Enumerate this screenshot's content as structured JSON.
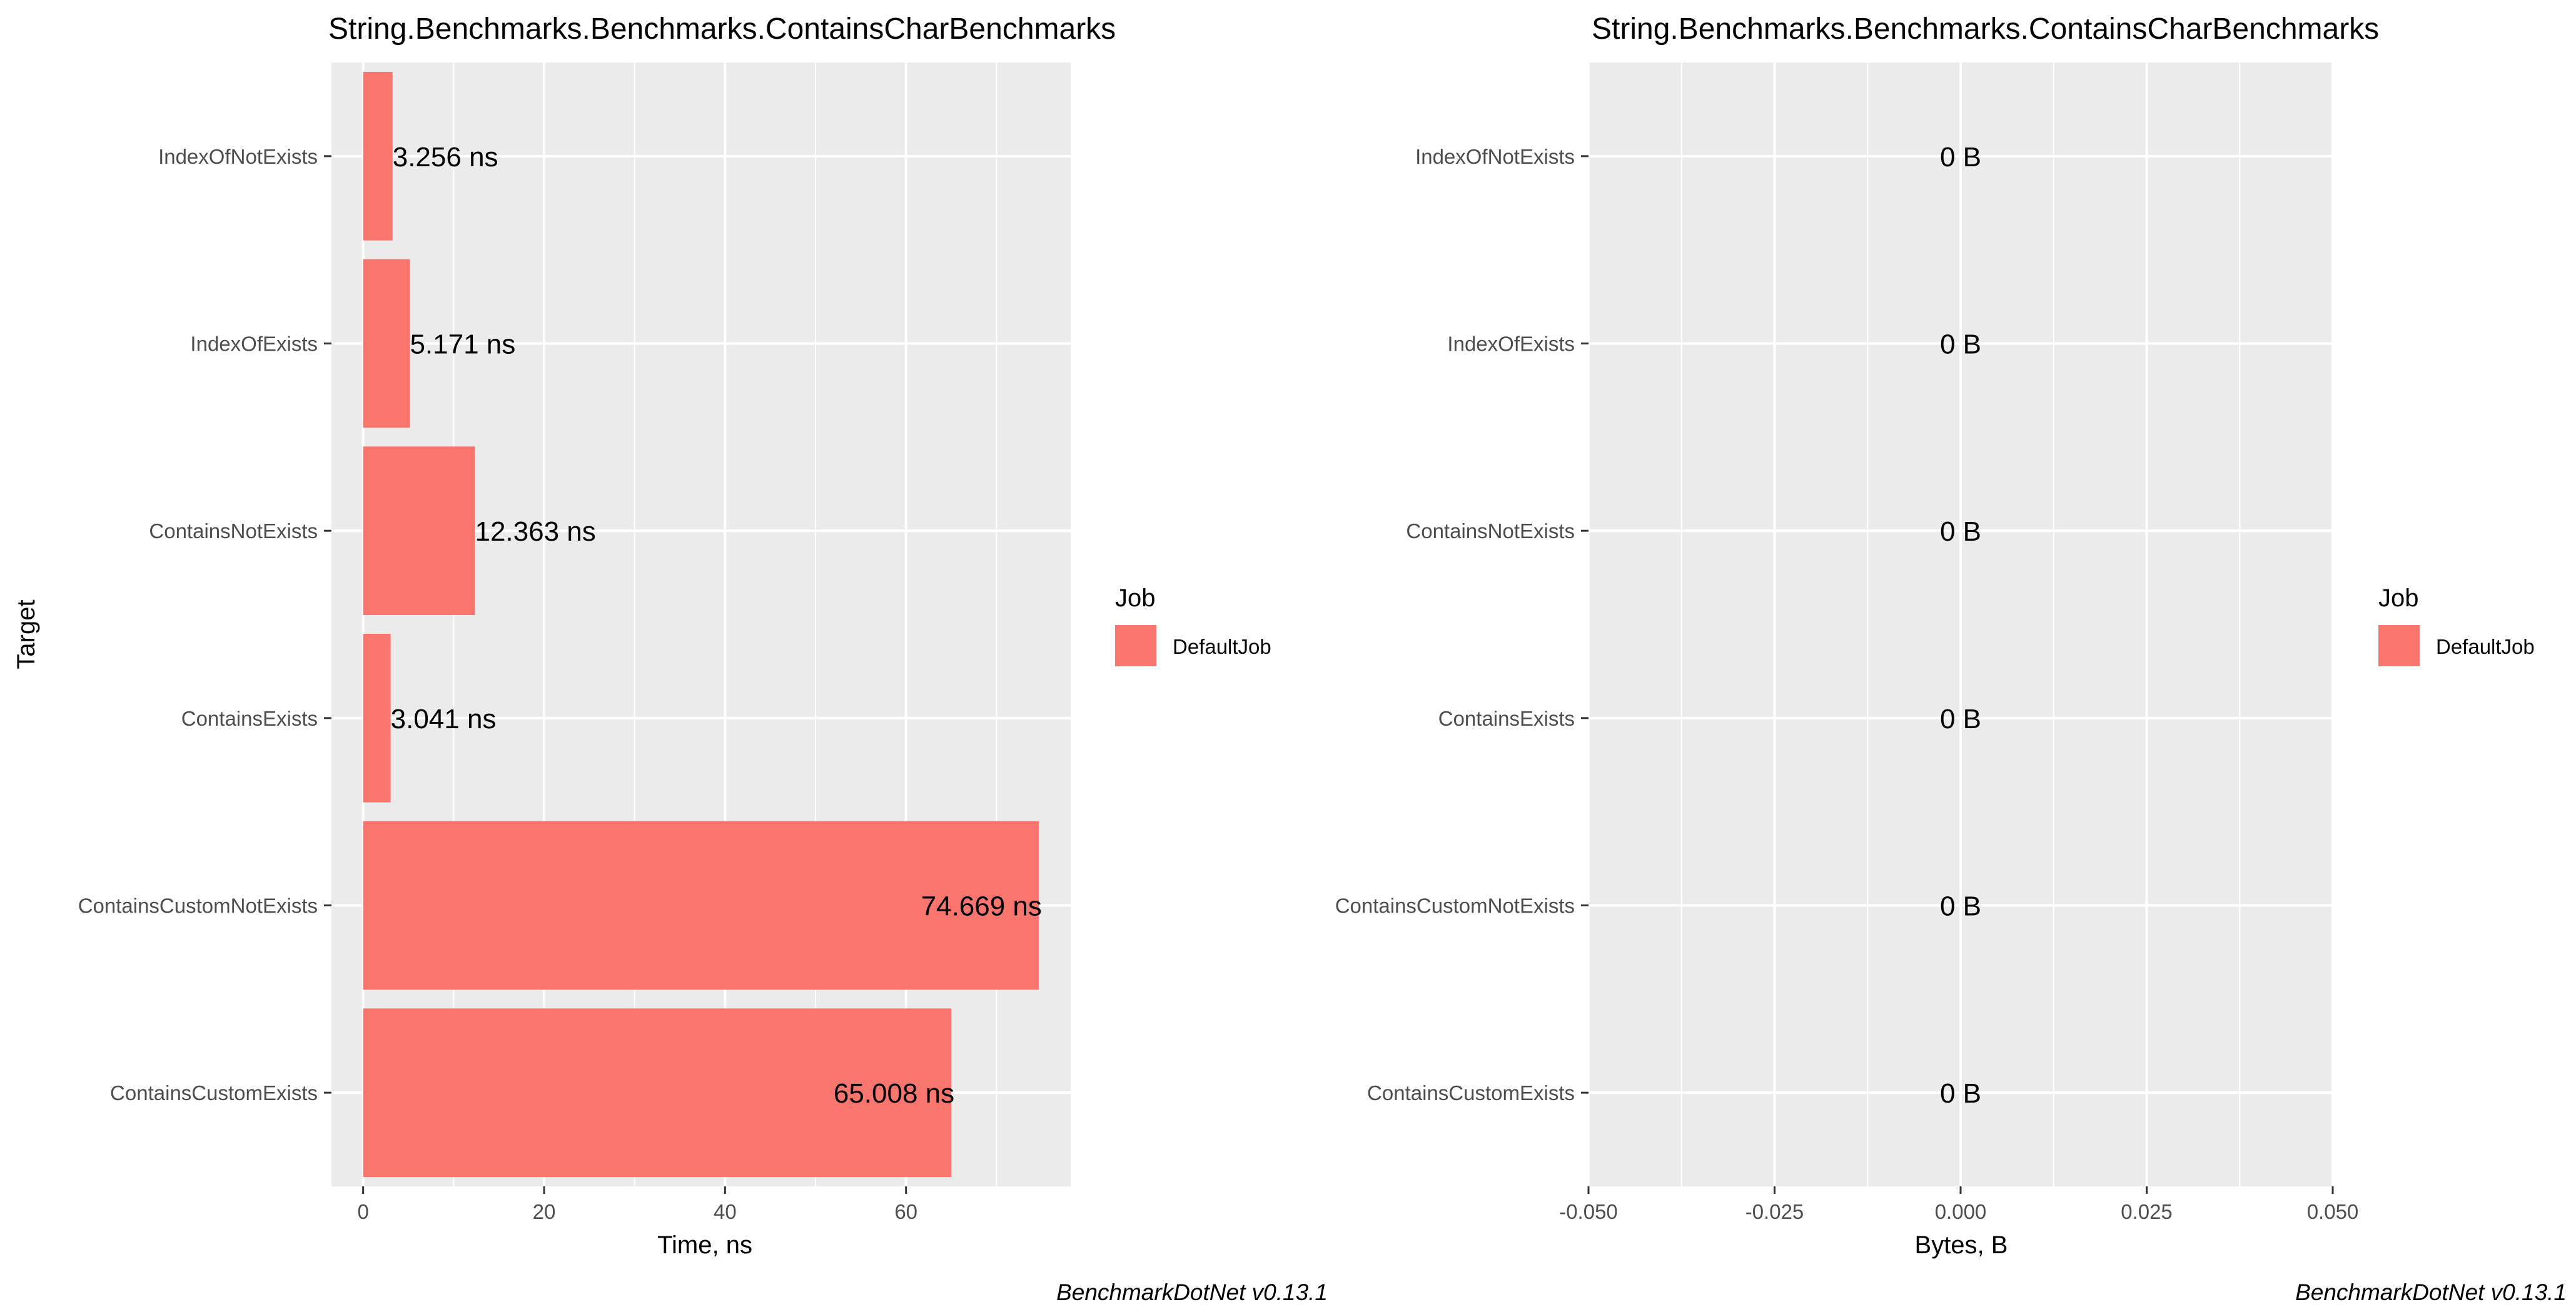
{
  "chart_data": [
    {
      "type": "bar",
      "orientation": "horizontal",
      "title": "String.Benchmarks.Benchmarks.ContainsCharBenchmarks",
      "ylabel": "Target",
      "xlabel": "Time, ns",
      "categories": [
        "IndexOfNotExists",
        "IndexOfExists",
        "ContainsNotExists",
        "ContainsExists",
        "ContainsCustomNotExists",
        "ContainsCustomExists"
      ],
      "series": [
        {
          "name": "DefaultJob",
          "values": [
            3.256,
            5.171,
            12.363,
            3.041,
            74.669,
            65.008
          ],
          "labels": [
            "3.256 ns",
            "5.171 ns",
            "12.363 ns",
            "3.041 ns",
            "74.669 ns",
            "65.008 ns"
          ]
        }
      ],
      "xlim": [
        -3.5,
        78.2
      ],
      "xticks": [
        0,
        20,
        40,
        60
      ],
      "xtick_labels": [
        "0",
        "20",
        "40",
        "60"
      ],
      "grid": true,
      "legend": {
        "title": "Job",
        "entries": [
          "DefaultJob"
        ],
        "position": "right"
      },
      "caption": "BenchmarkDotNet v0.13.1"
    },
    {
      "type": "bar",
      "orientation": "horizontal",
      "title": "String.Benchmarks.Benchmarks.ContainsCharBenchmarks",
      "ylabel": "",
      "xlabel": "Bytes, B",
      "categories": [
        "IndexOfNotExists",
        "IndexOfExists",
        "ContainsNotExists",
        "ContainsExists",
        "ContainsCustomNotExists",
        "ContainsCustomExists"
      ],
      "series": [
        {
          "name": "DefaultJob",
          "values": [
            0,
            0,
            0,
            0,
            0,
            0
          ],
          "labels": [
            "0 B",
            "0 B",
            "0 B",
            "0 B",
            "0 B",
            "0 B"
          ]
        }
      ],
      "xlim": [
        -0.05,
        0.05
      ],
      "xticks": [
        -0.05,
        -0.025,
        0,
        0.025,
        0.05
      ],
      "xtick_labels": [
        "-0.050",
        "-0.025",
        "0.000",
        "0.025",
        "0.050"
      ],
      "grid": true,
      "legend": {
        "title": "Job",
        "entries": [
          "DefaultJob"
        ],
        "position": "right"
      },
      "caption": "BenchmarkDotNet v0.13.1"
    }
  ],
  "colors": {
    "bar": "#F8766D",
    "panel": "#EBEBEB",
    "grid": "#FFFFFF",
    "text": "#000000",
    "tick_text": "#4D4D4D",
    "tick": "#333333"
  }
}
